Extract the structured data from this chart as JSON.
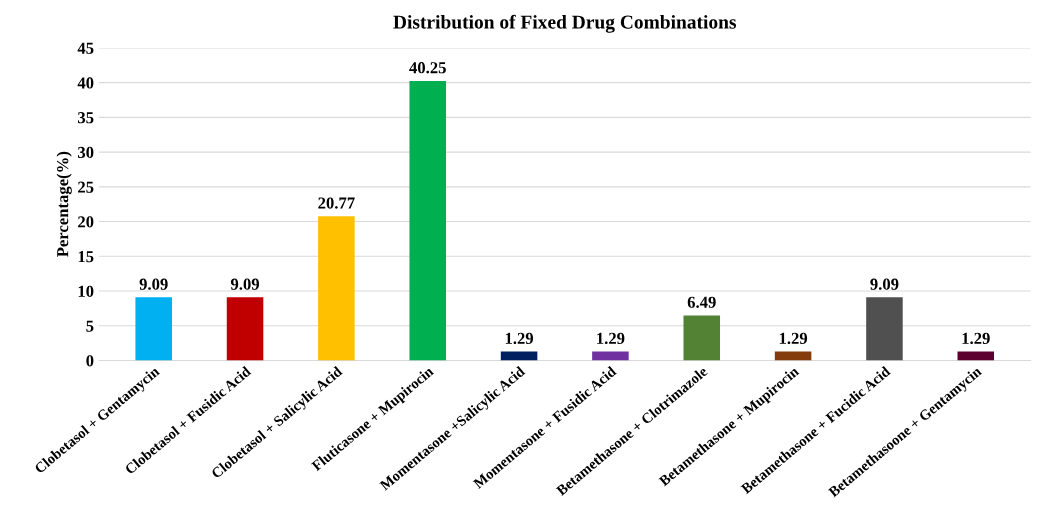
{
  "chart_data": {
    "type": "bar",
    "title": "Distribution of Fixed Drug Combinations",
    "ylabel": "Percentage(%)",
    "categories": [
      "Clobetasol + Gentamycin",
      "Clobetasol + Fusidic Acid",
      "Clobetasol + Salicylic Acid",
      "Fluticasone + Mupirocin",
      "Momentasone +Salicylic Acid",
      "Momentasone + Fusidic Acid",
      "Betamethasone + Clotrimazole",
      "Betamethasone + Mupirocin",
      "Betamethasone + Fucidic Acid",
      "Betamethasoone + Gentamycin"
    ],
    "values": [
      9.09,
      9.09,
      20.77,
      40.25,
      1.29,
      1.29,
      6.49,
      1.29,
      9.09,
      1.29
    ],
    "colors": [
      "#00b0f0",
      "#c00000",
      "#ffc000",
      "#00b050",
      "#002060",
      "#7030a0",
      "#548235",
      "#843c0c",
      "#505050",
      "#5c0030"
    ],
    "ylim": [
      0,
      45
    ],
    "yticks": [
      0,
      5,
      10,
      15,
      20,
      25,
      30,
      35,
      40,
      45
    ],
    "grid": "y",
    "data_labels": true
  }
}
